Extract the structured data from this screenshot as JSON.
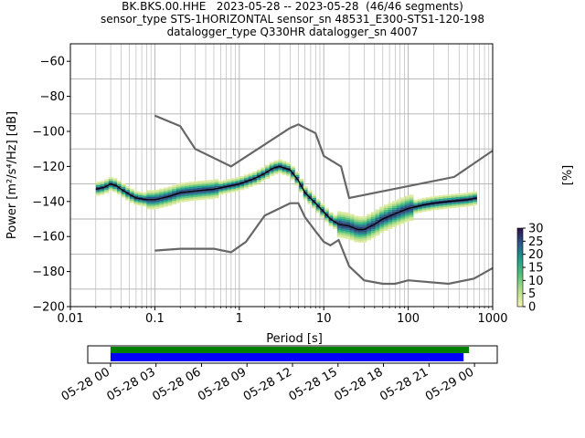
{
  "header": {
    "title_line1": "BK.BKS.00.HHE   2023-05-28 -- 2023-05-28  (46/46 segments)",
    "title_line2": "sensor_type STS-1HORIZONTAL sensor_sn 48531_E300-STS1-120-198",
    "title_line3": "datalogger_type Q330HR datalogger_sn 4007"
  },
  "chart_data": {
    "type": "heatmap",
    "xlabel": "Period [s]",
    "ylabel": "Power [m²/s⁴/Hz] [dB]",
    "xscale": "log",
    "xlim": [
      0.01,
      1000
    ],
    "ylim": [
      -200,
      -50
    ],
    "grid": true,
    "x_tick_labels": [
      "0.01",
      "0.1",
      "1",
      "10",
      "100",
      "1000"
    ],
    "y_tick_labels": [
      "−200",
      "−180",
      "−160",
      "−140",
      "−120",
      "−100",
      "−80",
      "−60"
    ],
    "colorbar": {
      "label": "[%]",
      "ticks": [
        "0",
        "5",
        "10",
        "15",
        "20",
        "25",
        "30"
      ],
      "range": [
        0,
        30
      ]
    },
    "mode_curve": {
      "period": [
        0.02,
        0.025,
        0.03,
        0.035,
        0.04,
        0.05,
        0.06,
        0.08,
        0.1,
        0.15,
        0.2,
        0.3,
        0.5,
        0.8,
        1.0,
        1.5,
        2.0,
        2.5,
        3.0,
        4.0,
        5.0,
        6.0,
        8.0,
        10,
        12,
        15,
        20,
        25,
        30,
        40,
        50,
        70,
        100,
        150,
        200,
        300,
        500,
        650
      ],
      "power": [
        -133,
        -132,
        -130,
        -131,
        -133,
        -136,
        -138,
        -139,
        -139,
        -137,
        -135,
        -134,
        -133,
        -131,
        -130,
        -127,
        -124,
        -121,
        -120,
        -122,
        -128,
        -135,
        -141,
        -146,
        -150,
        -153,
        -154,
        -156,
        -156,
        -153,
        -150,
        -147,
        -144,
        -142,
        -141,
        -140,
        -139,
        -138
      ]
    },
    "noise_models": [
      {
        "period": [
          0.1,
          0.2,
          0.3,
          0.8,
          4.0,
          4.5,
          5.0,
          6.0,
          8.0,
          10,
          16,
          20,
          350,
          1000
        ],
        "power": [
          -91,
          -97,
          -110,
          -120,
          -98,
          -97,
          -96,
          -98,
          -101,
          -114,
          -120,
          -138,
          -126,
          -111
        ]
      },
      {
        "period": [
          0.1,
          0.2,
          0.5,
          0.8,
          1.2,
          2.0,
          4.0,
          5.0,
          6.0,
          8.0,
          10,
          12,
          15,
          20,
          30,
          50,
          70,
          100,
          300,
          600,
          1000
        ],
        "power": [
          -168,
          -167,
          -167,
          -169,
          -163,
          -148,
          -141,
          -141,
          -149,
          -157,
          -163,
          -165,
          -162,
          -177,
          -185,
          -187,
          -187,
          -185,
          -187,
          -184,
          -178
        ]
      }
    ],
    "time_axis": {
      "tick_labels": [
        "05-28 00",
        "05-28 03",
        "05-28 06",
        "05-28 09",
        "05-28 12",
        "05-28 15",
        "05-28 18",
        "05-28 21",
        "05-29 00"
      ],
      "data_coverage": [
        0.0,
        0.985
      ],
      "psd_coverage": [
        0.0,
        0.97
      ],
      "range_hours": [
        -1.5,
        25.5
      ]
    },
    "colors": {
      "mode": "#000000",
      "noise_model": "#666666",
      "grid": "#b0b0b0",
      "data_bar": "#008000",
      "psd_bar": "#0000ff"
    }
  }
}
